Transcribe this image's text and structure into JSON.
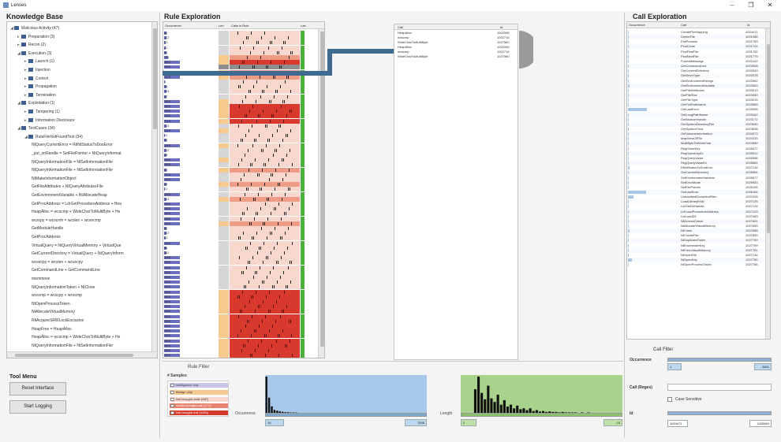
{
  "window": {
    "title": "Lenses",
    "minimize": "–",
    "maximize": "❐",
    "close": "✕"
  },
  "knowledge_base": {
    "title": "Knowledge Base",
    "tree": [
      {
        "level": 0,
        "label": "Malicious Activity (47)",
        "expanded": true
      },
      {
        "level": 1,
        "label": "Preparation (3)",
        "expanded": false
      },
      {
        "level": 1,
        "label": "Recon (2)",
        "expanded": false
      },
      {
        "level": 1,
        "label": "Execution (3)",
        "expanded": true
      },
      {
        "level": 2,
        "label": "Launch (1)",
        "expanded": false
      },
      {
        "level": 2,
        "label": "Injection",
        "expanded": false
      },
      {
        "level": 2,
        "label": "Control",
        "expanded": false
      },
      {
        "level": 2,
        "label": "Propagation",
        "expanded": false
      },
      {
        "level": 2,
        "label": "Termination",
        "expanded": false
      },
      {
        "level": 1,
        "label": "Exploitation (1)",
        "expanded": true
      },
      {
        "level": 2,
        "label": "Tampering (1)",
        "expanded": false
      },
      {
        "level": 2,
        "label": "Information Disclosure",
        "expanded": false
      },
      {
        "level": 1,
        "label": "TestCases (34)",
        "expanded": true
      },
      {
        "level": 2,
        "label": "RuleFileNotFoundTest (34)",
        "expanded": true
      },
      {
        "level": 3,
        "label": "NtQueryCurrentError = RtlNtStatusToDosError"
      },
      {
        "level": 3,
        "label": "_put_onRandle = SetFilePointer + NtQueryInformat"
      },
      {
        "level": 3,
        "label": "NtQueryInformationFile = NtSetInformationFile"
      },
      {
        "level": 3,
        "label": "NtQueryInformationFile + NtSetInformationFile"
      },
      {
        "level": 3,
        "label": "NtMakeInformationObject"
      },
      {
        "level": 3,
        "label": "GetFileAttributes + NtQueryAttributesFile"
      },
      {
        "level": 3,
        "label": "GetEnvironmentVariable + RtlAllocateHeap"
      },
      {
        "level": 3,
        "label": "GetProcAddress = LdrGetProcedureAddress + Hea"
      },
      {
        "level": 3,
        "label": "HeapAlloc = wcscmp + WideCharToMultiByte + He"
      },
      {
        "level": 3,
        "label": "wcscpy = wcscmh = wcslen + wcsncmp"
      },
      {
        "level": 3,
        "label": "GetModuleHandle"
      },
      {
        "level": 3,
        "label": "GetProcAddress"
      },
      {
        "level": 3,
        "label": "VirtualQuery = NtQueryVirtualMemory + VirtualQue"
      },
      {
        "level": 3,
        "label": "GetCurrentDirectory = VirtualQuery + NtQueryInform"
      },
      {
        "level": 3,
        "label": "wcsncpy = wcslen + wcsncpy"
      },
      {
        "level": 3,
        "label": "GetCommandLine + GetCommandLine"
      },
      {
        "level": 3,
        "label": "memmove"
      },
      {
        "level": 3,
        "label": "NtQueryInformationToken + NtClose"
      },
      {
        "level": 3,
        "label": "wcscmp = wcscpy + wcscmp"
      },
      {
        "level": 3,
        "label": "NtOpenProcessToken"
      },
      {
        "level": 3,
        "label": "NtAllocateVirtualMemory"
      },
      {
        "level": 3,
        "label": "RtlAcquireSRWLockExclusive"
      },
      {
        "level": 3,
        "label": "HeapFree = HeapAlloc"
      },
      {
        "level": 3,
        "label": "HeapAlloc = wcscmp + WideCharToMultiByte + He"
      },
      {
        "level": 3,
        "label": "NtQueryInformationFile + NtSetInformationFile"
      }
    ]
  },
  "tool_menu": {
    "title": "Tool Menu",
    "reset_label": "Reset Interface",
    "logging_label": "Start Logging"
  },
  "rule_exploration": {
    "title": "Rule Exploration",
    "headers": {
      "occurrence": "Occurrence",
      "length": "Len",
      "calls": "Calls in Rule",
      "label": "Lab"
    },
    "rows": [
      {
        "occ": "84",
        "w": 0.05,
        "len": "l",
        "fill": "light"
      },
      {
        "occ": "112",
        "w": 0.05,
        "len": "l",
        "fill": "light"
      },
      {
        "occ": "23",
        "w": 0.03,
        "len": "l",
        "fill": "light"
      },
      {
        "occ": "32",
        "w": 0.03,
        "len": "l",
        "fill": "light"
      },
      {
        "occ": "84",
        "w": 0.05,
        "len": "l",
        "fill": "light"
      },
      {
        "occ": "116",
        "w": 0.08,
        "len": "o",
        "fill": "medium"
      },
      {
        "occ": "3801",
        "w": 0.3,
        "len": "o",
        "fill": "dark"
      },
      {
        "occ": "3801",
        "w": 0.3,
        "len": "g",
        "fill": "selected"
      },
      {
        "occ": "3801",
        "w": 0.3,
        "len": "o",
        "fill": "medium"
      },
      {
        "occ": "3801",
        "w": 0.3,
        "len": "o",
        "fill": "medium"
      },
      {
        "occ": "4",
        "w": 0.02,
        "len": "l",
        "fill": "light"
      },
      {
        "occ": "84",
        "w": 0.05,
        "len": "l",
        "fill": "light"
      },
      {
        "occ": "113",
        "w": 0.05,
        "len": "l",
        "fill": "light"
      },
      {
        "occ": "57",
        "w": 0.04,
        "len": "l",
        "fill": "light"
      },
      {
        "occ": "3801",
        "w": 0.3,
        "len": "o",
        "fill": "light"
      },
      {
        "occ": "3801",
        "w": 0.3,
        "len": "o",
        "fill": "dark"
      },
      {
        "occ": "3801",
        "w": 0.3,
        "len": "o",
        "fill": "dark"
      },
      {
        "occ": "3801",
        "w": 0.3,
        "len": "o",
        "fill": "dark"
      },
      {
        "occ": "3801",
        "w": 0.3,
        "len": "o",
        "fill": "dark"
      },
      {
        "occ": "114",
        "w": 0.05,
        "len": "l",
        "fill": "light"
      },
      {
        "occ": "3801",
        "w": 0.3,
        "len": "o",
        "fill": "light"
      },
      {
        "occ": "22",
        "w": 0.02,
        "len": "l",
        "fill": "light"
      },
      {
        "occ": "84",
        "w": 0.05,
        "len": "l",
        "fill": "light"
      },
      {
        "occ": "3801",
        "w": 0.3,
        "len": "o",
        "fill": "light"
      },
      {
        "occ": "112",
        "w": 0.05,
        "len": "l",
        "fill": "light"
      },
      {
        "occ": "83",
        "w": 0.05,
        "len": "l",
        "fill": "light"
      },
      {
        "occ": "3801",
        "w": 0.3,
        "len": "o",
        "fill": "light"
      },
      {
        "occ": "3801",
        "w": 0.3,
        "len": "l",
        "fill": "light"
      },
      {
        "occ": "84",
        "w": 0.05,
        "len": "o",
        "fill": "medium"
      },
      {
        "occ": "3801",
        "w": 0.3,
        "len": "l",
        "fill": "light"
      },
      {
        "occ": "3801",
        "w": 0.3,
        "len": "l",
        "fill": "light"
      },
      {
        "occ": "84",
        "w": 0.05,
        "len": "o",
        "fill": "medium"
      },
      {
        "occ": "22",
        "w": 0.02,
        "len": "l",
        "fill": "light"
      },
      {
        "occ": "3801",
        "w": 0.3,
        "len": "l",
        "fill": "light"
      },
      {
        "occ": "114",
        "w": 0.05,
        "len": "o",
        "fill": "medium"
      },
      {
        "occ": "3801",
        "w": 0.3,
        "len": "l",
        "fill": "light"
      },
      {
        "occ": "3801",
        "w": 0.3,
        "len": "l",
        "fill": "light"
      },
      {
        "occ": "3801",
        "w": 0.3,
        "len": "l",
        "fill": "light"
      },
      {
        "occ": "3801",
        "w": 0.3,
        "len": "l",
        "fill": "light"
      },
      {
        "occ": "3801",
        "w": 0.3,
        "len": "o",
        "fill": "medium"
      },
      {
        "occ": "84",
        "w": 0.05,
        "len": "l",
        "fill": "light"
      },
      {
        "occ": "112",
        "w": 0.05,
        "len": "l",
        "fill": "light"
      },
      {
        "occ": "43",
        "w": 0.03,
        "len": "l",
        "fill": "light"
      },
      {
        "occ": "3801",
        "w": 0.3,
        "len": "l",
        "fill": "light"
      },
      {
        "occ": "84",
        "w": 0.05,
        "len": "l",
        "fill": "light"
      },
      {
        "occ": "112",
        "w": 0.05,
        "len": "l",
        "fill": "light"
      },
      {
        "occ": "3801",
        "w": 0.3,
        "len": "l",
        "fill": "light"
      },
      {
        "occ": "3801",
        "w": 0.3,
        "len": "l",
        "fill": "light"
      },
      {
        "occ": "3801",
        "w": 0.3,
        "len": "l",
        "fill": "light"
      },
      {
        "occ": "3801",
        "w": 0.3,
        "len": "l",
        "fill": "light"
      },
      {
        "occ": "3801",
        "w": 0.3,
        "len": "l",
        "fill": "light"
      },
      {
        "occ": "3801",
        "w": 0.3,
        "len": "l",
        "fill": "light"
      },
      {
        "occ": "3801",
        "w": 0.3,
        "len": "l",
        "fill": "light"
      },
      {
        "occ": "3801",
        "w": 0.3,
        "len": "o",
        "fill": "dark"
      },
      {
        "occ": "3801",
        "w": 0.3,
        "len": "o",
        "fill": "dark"
      },
      {
        "occ": "3801",
        "w": 0.3,
        "len": "o",
        "fill": "dark"
      },
      {
        "occ": "3801",
        "w": 0.3,
        "len": "o",
        "fill": "dark"
      },
      {
        "occ": "3801",
        "w": 0.3,
        "len": "o",
        "fill": "dark"
      },
      {
        "occ": "3801",
        "w": 0.3,
        "len": "o",
        "fill": "dark"
      },
      {
        "occ": "3801",
        "w": 0.3,
        "len": "o",
        "fill": "dark"
      },
      {
        "occ": "3801",
        "w": 0.3,
        "len": "o",
        "fill": "dark"
      },
      {
        "occ": "3801",
        "w": 0.3,
        "len": "o",
        "fill": "dark"
      },
      {
        "occ": "3801",
        "w": 0.3,
        "len": "o",
        "fill": "dark"
      },
      {
        "occ": "3801",
        "w": 0.3,
        "len": "o",
        "fill": "dark"
      },
      {
        "occ": "3801",
        "w": 0.3,
        "len": "o",
        "fill": "dark"
      },
      {
        "occ": "3801",
        "w": 0.3,
        "len": "o",
        "fill": "dark"
      },
      {
        "occ": "3801",
        "w": 0.3,
        "len": "o",
        "fill": "dark"
      },
      {
        "occ": "3801",
        "w": 0.3,
        "len": "o",
        "fill": "dark"
      }
    ]
  },
  "selected_rule_calls": {
    "headers": {
      "call": "Call",
      "id": "Id"
    },
    "rows": [
      {
        "call": "HeapAlloc",
        "id": "1002596"
      },
      {
        "call": "wcscmp",
        "id": "1002716"
      },
      {
        "call": "WideCharToMultiByte",
        "id": "1027560"
      },
      {
        "call": "HeapAlloc",
        "id": "1002596"
      },
      {
        "call": "wcscmp",
        "id": "1002716"
      },
      {
        "call": "WideCharToMultiByte",
        "id": "1027560"
      }
    ]
  },
  "rule_filter": {
    "title": "Rule Filter",
    "samples_label": "# Samples",
    "legend": [
      {
        "label": "Intelligence only",
        "color": "#c9c7e9"
      },
      {
        "label": "Benign only",
        "color": "#f6c98f"
      },
      {
        "label": "Not brought crate (467)",
        "color": "#f8d7cf"
      },
      {
        "label": "Invalid brought rule (271)",
        "color": "#e8826e"
      },
      {
        "label": "Not brought rule (1001)",
        "color": "#d5392c"
      }
    ],
    "occurrence_label": "Occurrence",
    "length_label": "Length",
    "occ_min": "10",
    "occ_max": "7538",
    "len_min": "2",
    "len_max": "24",
    "occ_hist": [
      100,
      42,
      18,
      8,
      6,
      4,
      3,
      2,
      2,
      1,
      1,
      1,
      0,
      0,
      0,
      0,
      0,
      0,
      0,
      0,
      0,
      0,
      0,
      0,
      0,
      0,
      0,
      0,
      0,
      0,
      0,
      0,
      0,
      0,
      0,
      0,
      0,
      0,
      0,
      0,
      0,
      0,
      0,
      0,
      0,
      0,
      0,
      0,
      0,
      0,
      0,
      0,
      0,
      0,
      0,
      0,
      0,
      0,
      0,
      0
    ],
    "len_hist": [
      0,
      0,
      0,
      0,
      52,
      80,
      44,
      30,
      60,
      32,
      24,
      40,
      18,
      28,
      14,
      18,
      10,
      16,
      8,
      10,
      6,
      10,
      4,
      6,
      3,
      4,
      2,
      3,
      2,
      2,
      1,
      2,
      1,
      1,
      1,
      1,
      0,
      1,
      0,
      1,
      0,
      0,
      0,
      0,
      0,
      0,
      0,
      0,
      0,
      0
    ]
  },
  "call_exploration": {
    "title": "Call Exploration",
    "headers": {
      "occurrence": "Occurrence",
      "call": "Call",
      "id": "Id"
    },
    "rows": [
      {
        "occ": "",
        "w": 0.02,
        "call": "CreateFileMapping",
        "id": "1024471"
      },
      {
        "occ": "",
        "w": 0.02,
        "call": "DeleteFile",
        "id": "1021086"
      },
      {
        "occ": "",
        "w": 0.02,
        "call": "ExitProcess",
        "id": "1021789"
      },
      {
        "occ": "",
        "w": 0.02,
        "call": "FindClose",
        "id": "1021724"
      },
      {
        "occ": "",
        "w": 0.02,
        "call": "FindFirstFile",
        "id": "1021762"
      },
      {
        "occ": "",
        "w": 0.02,
        "call": "FindNextFile",
        "id": "1021779"
      },
      {
        "occ": "",
        "w": 0.02,
        "call": "FormatMessage",
        "id": "1022102"
      },
      {
        "occ": "",
        "w": 0.02,
        "call": "GetCommandLine",
        "id": "1022508"
      },
      {
        "occ": "",
        "w": 0.02,
        "call": "GetCurrentDirectory",
        "id": "1022549"
      },
      {
        "occ": "",
        "w": 0.02,
        "call": "GetDriveType",
        "id": "1022978"
      },
      {
        "occ": "",
        "w": 0.02,
        "call": "GetEnvironmentStrings",
        "id": "1022962"
      },
      {
        "occ": "",
        "w": 0.03,
        "call": "GetEnvironmentVariable",
        "id": "1023063"
      },
      {
        "occ": "",
        "w": 0.02,
        "call": "GetFileAttributes",
        "id": "1023013"
      },
      {
        "occ": "",
        "w": 0.02,
        "call": "GetFileSize",
        "id": "1023050"
      },
      {
        "occ": "",
        "w": 0.02,
        "call": "GetFileType",
        "id": "1023015"
      },
      {
        "occ": "",
        "w": 0.02,
        "call": "GetFullPathName",
        "id": "1023069"
      },
      {
        "occ": "",
        "w": 0.4,
        "call": "GetLastError",
        "id": "1023098"
      },
      {
        "occ": "",
        "w": 0.02,
        "call": "GetLongPathName",
        "id": "1023162"
      },
      {
        "occ": "",
        "w": 0.02,
        "call": "GetModuleHandle",
        "id": "1023172"
      },
      {
        "occ": "",
        "w": 0.02,
        "call": "GetSystemDirectoryFile",
        "id": "1023630"
      },
      {
        "occ": "",
        "w": 0.02,
        "call": "GetSystemTime",
        "id": "1023638"
      },
      {
        "occ": "",
        "w": 0.02,
        "call": "GetVolumeInformation",
        "id": "1024073"
      },
      {
        "occ": "",
        "w": 0.02,
        "call": "MapViewOfFile",
        "id": "1024315"
      },
      {
        "occ": "",
        "w": 0.02,
        "call": "MultiByteToWideChar",
        "id": "1024589"
      },
      {
        "occ": "",
        "w": 0.02,
        "call": "RegCloseKey",
        "id": "1025477"
      },
      {
        "occ": "",
        "w": 0.02,
        "call": "RegOpenKeyEx",
        "id": "1025512"
      },
      {
        "occ": "",
        "w": 0.02,
        "call": "RegQueryValue",
        "id": "1025556"
      },
      {
        "occ": "",
        "w": 0.02,
        "call": "RegQueryValueEx",
        "id": "1025661"
      },
      {
        "occ": "",
        "w": 0.03,
        "call": "RtlNtStatusToDosError",
        "id": "1027144"
      },
      {
        "occ": "",
        "w": 0.02,
        "call": "SetCurrentDirectory",
        "id": "1025954"
      },
      {
        "occ": "",
        "w": 0.02,
        "call": "SetEnvironmentVariable",
        "id": "1025977"
      },
      {
        "occ": "",
        "w": 0.02,
        "call": "SetErrorMode",
        "id": "1025983"
      },
      {
        "occ": "",
        "w": 0.02,
        "call": "SetFilePointer",
        "id": "1026105"
      },
      {
        "occ": "",
        "w": 0.38,
        "call": "SetLastError",
        "id": "1026184"
      },
      {
        "occ": "",
        "w": 0.12,
        "call": "UnhandledExceptionFilter",
        "id": "1027028"
      },
      {
        "occ": "",
        "w": 0.02,
        "call": "LoadLibraryExW",
        "id": "1027125"
      },
      {
        "occ": "",
        "w": 0.02,
        "call": "LdrGetDllHandle",
        "id": "1027126"
      },
      {
        "occ": "",
        "w": 0.02,
        "call": "LdrLoadProcedureAddress",
        "id": "1027129"
      },
      {
        "occ": "",
        "w": 0.02,
        "call": "LdrLoadDll",
        "id": "1027483"
      },
      {
        "occ": "",
        "w": 0.02,
        "call": "NtAccessCheck",
        "id": "1027601"
      },
      {
        "occ": "",
        "w": 0.02,
        "call": "NtAllocateVirtualMemory",
        "id": "1027655"
      },
      {
        "occ": "",
        "w": 0.03,
        "call": "NtClose",
        "id": "1027668"
      },
      {
        "occ": "",
        "w": 0.02,
        "call": "NtCreateFile",
        "id": "1027690"
      },
      {
        "occ": "",
        "w": 0.02,
        "call": "NtDuplicateToken",
        "id": "1027700"
      },
      {
        "occ": "",
        "w": 0.02,
        "call": "NtEnumerateKey",
        "id": "1027709"
      },
      {
        "occ": "",
        "w": 0.02,
        "call": "NtFreeVirtualMemory",
        "id": "1027761"
      },
      {
        "occ": "",
        "w": 0.02,
        "call": "NtOpenFile",
        "id": "1027744"
      },
      {
        "occ": "",
        "w": 0.08,
        "call": "NtOpenKey",
        "id": "1027750"
      },
      {
        "occ": "",
        "w": 0.02,
        "call": "NtOpenProcessToken",
        "id": "1027765"
      }
    ]
  },
  "call_filter": {
    "title": "Call Filter",
    "occurrence_label": "Occurrence",
    "occ_min": "1",
    "occ_max": "3801",
    "regex_label": "Call (Regex)",
    "regex_value": "",
    "case_label": "Case Sensitive",
    "id_label": "Id",
    "id_min": "1024471",
    "id_max": "1028464"
  },
  "colors": {
    "header_blue": "#3f5f94",
    "selection_band": "#3e6b8f",
    "length_orange": "#f6c98f",
    "label_green": "#4cae3c",
    "hist_blue": "#a7c8e8",
    "hist_green": "#a9d28c"
  }
}
